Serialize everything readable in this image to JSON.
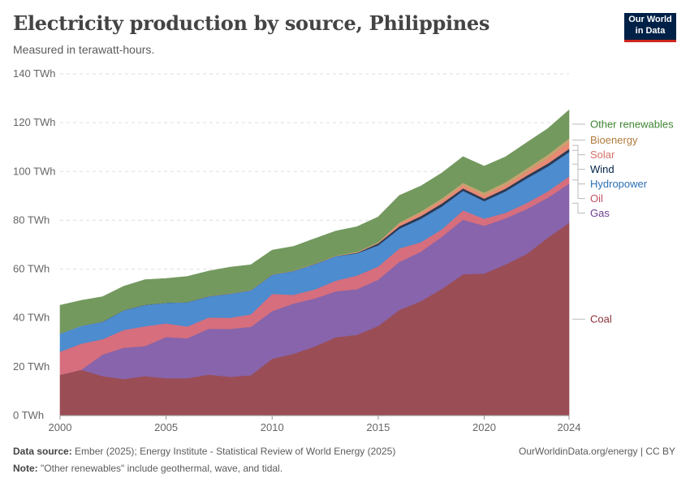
{
  "header": {
    "title": "Electricity production by source, Philippines",
    "subtitle": "Measured in terawatt-hours.",
    "logo_line1": "Our World",
    "logo_line2": "in Data"
  },
  "footer": {
    "source_label": "Data source:",
    "source_text": "Ember (2025); Energy Institute - Statistical Review of World Energy (2025)",
    "note_label": "Note:",
    "note_text": "\"Other renewables\" include geothermal, wave, and tidal.",
    "credit": "OurWorldinData.org/energy | CC BY"
  },
  "chart_data": {
    "type": "area",
    "stacked": true,
    "title": "Electricity production by source, Philippines",
    "subtitle": "Measured in terawatt-hours.",
    "x": [
      2000,
      2001,
      2002,
      2003,
      2004,
      2005,
      2006,
      2007,
      2008,
      2009,
      2010,
      2011,
      2012,
      2013,
      2014,
      2015,
      2016,
      2017,
      2018,
      2019,
      2020,
      2021,
      2022,
      2023,
      2024
    ],
    "xticks": [
      2000,
      2005,
      2010,
      2015,
      2020,
      2024
    ],
    "ylim": [
      0,
      140
    ],
    "yticks": [
      0,
      20,
      40,
      60,
      80,
      100,
      120,
      140
    ],
    "ytick_labels": [
      "0 TWh",
      "20 TWh",
      "40 TWh",
      "60 TWh",
      "80 TWh",
      "100 TWh",
      "120 TWh",
      "140 TWh"
    ],
    "grid": true,
    "legend_position": "right",
    "series": [
      {
        "name": "Coal",
        "color": "#9b4d55",
        "label_color": "#883039",
        "values": [
          16.7,
          18.8,
          16.2,
          15.0,
          16.2,
          15.3,
          15.3,
          16.8,
          15.9,
          16.5,
          23.3,
          25.3,
          28.3,
          32.1,
          33.1,
          36.7,
          43.3,
          46.8,
          51.9,
          57.9,
          58.2,
          61.9,
          66.2,
          72.9,
          79.0
        ]
      },
      {
        "name": "Gas",
        "color": "#8764ab",
        "label_color": "#6d3e91",
        "values": [
          0.0,
          0.0,
          8.8,
          12.8,
          12.3,
          16.9,
          16.4,
          18.8,
          19.6,
          19.9,
          19.5,
          20.6,
          19.7,
          18.8,
          18.7,
          19.0,
          19.7,
          20.3,
          21.4,
          22.4,
          19.6,
          18.9,
          18.4,
          16.4,
          16.0
        ]
      },
      {
        "name": "Oil",
        "color": "#d66e7d",
        "label_color": "#c15065",
        "values": [
          9.5,
          10.7,
          6.3,
          7.3,
          8.1,
          5.6,
          4.8,
          4.6,
          4.6,
          5.1,
          7.1,
          3.6,
          3.7,
          4.4,
          5.6,
          5.4,
          5.5,
          3.9,
          3.0,
          3.8,
          2.9,
          2.3,
          2.5,
          2.6,
          3.0
        ]
      },
      {
        "name": "Hydropower",
        "color": "#4c8ccf",
        "label_color": "#2c6fb5",
        "values": [
          7.4,
          7.3,
          7.1,
          8.0,
          8.7,
          8.4,
          9.9,
          8.6,
          9.8,
          9.8,
          7.8,
          9.7,
          10.3,
          10.0,
          9.1,
          8.7,
          8.1,
          9.6,
          9.4,
          8.0,
          7.2,
          8.8,
          10.1,
          10.2,
          10.0
        ]
      },
      {
        "name": "Wind",
        "color": "#2b3a54",
        "label_color": "#002147",
        "values": [
          0.0,
          0.0,
          0.1,
          0.1,
          0.1,
          0.1,
          0.1,
          0.1,
          0.1,
          0.1,
          0.1,
          0.1,
          0.1,
          0.1,
          0.2,
          0.8,
          1.0,
          1.1,
          1.2,
          1.0,
          1.0,
          1.1,
          1.1,
          1.2,
          1.3
        ]
      },
      {
        "name": "Solar",
        "color": "#e88a74",
        "label_color": "#d7716a",
        "values": [
          0.0,
          0.0,
          0.0,
          0.0,
          0.0,
          0.0,
          0.0,
          0.0,
          0.0,
          0.0,
          0.0,
          0.0,
          0.0,
          0.0,
          0.1,
          0.1,
          1.1,
          1.2,
          1.2,
          1.3,
          1.4,
          1.4,
          1.6,
          2.2,
          2.8
        ]
      },
      {
        "name": "Bioenergy",
        "color": "#c5a26f",
        "label_color": "#b07b3e",
        "values": [
          0.0,
          0.0,
          0.0,
          0.0,
          0.0,
          0.0,
          0.0,
          0.1,
          0.1,
          0.1,
          0.1,
          0.1,
          0.2,
          0.2,
          0.3,
          0.4,
          0.4,
          0.7,
          0.9,
          1.0,
          1.1,
          1.2,
          1.3,
          1.4,
          1.5
        ]
      },
      {
        "name": "Other renewables",
        "color": "#73995f",
        "label_color": "#3f8432",
        "values": [
          11.6,
          10.4,
          10.2,
          9.8,
          10.3,
          9.9,
          10.5,
          10.2,
          10.7,
          10.3,
          9.9,
          9.9,
          10.2,
          10.0,
          10.3,
          10.3,
          11.1,
          10.4,
          10.4,
          10.7,
          10.8,
          10.4,
          10.6,
          10.7,
          11.6
        ]
      }
    ]
  }
}
